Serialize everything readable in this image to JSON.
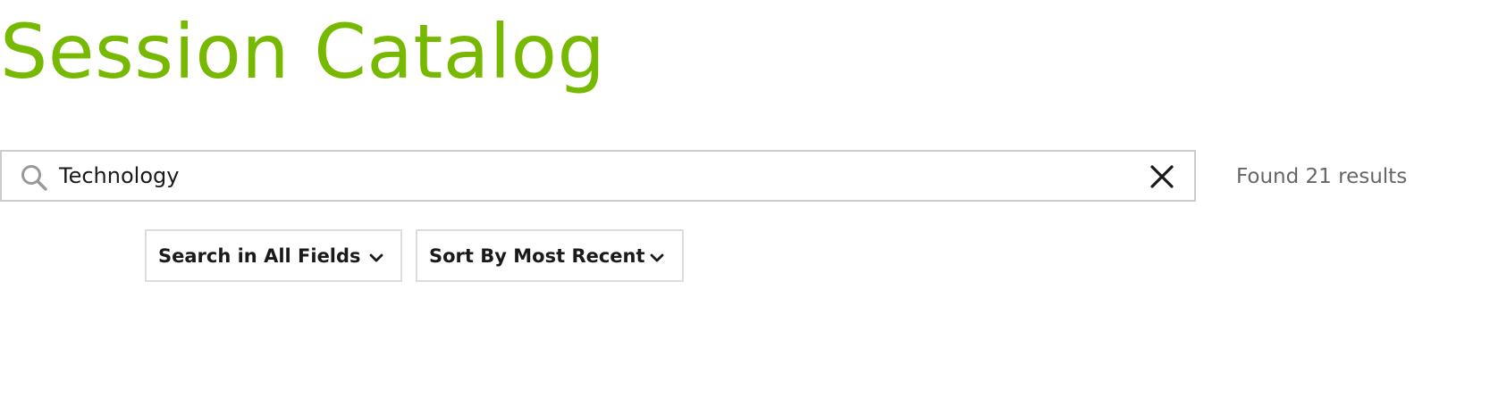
{
  "header": {
    "title": "Session Catalog"
  },
  "search": {
    "value": "Technology",
    "placeholder": "",
    "result_text": "Found 21 results"
  },
  "filters": {
    "field_dropdown": "Search in All Fields",
    "sort_dropdown": "Sort By Most Recent"
  },
  "icons": {
    "search": "search-icon",
    "clear": "close-icon",
    "dropdown": "chevron-down-icon"
  },
  "colors": {
    "accent": "#76b900",
    "border": "#cccccc",
    "muted_text": "#666666"
  }
}
